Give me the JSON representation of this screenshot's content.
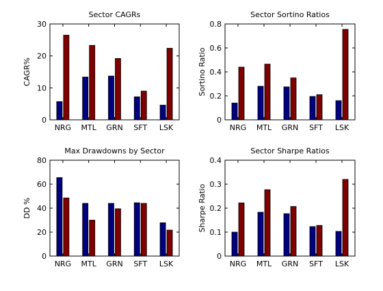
{
  "figure": {
    "background": "#ffffff"
  },
  "chart_data": [
    {
      "type": "bar",
      "title": "Sector CAGRs",
      "xlabel": "",
      "ylabel": "CAGR%",
      "categories": [
        "NRG",
        "MTL",
        "GRN",
        "SFT",
        "LSK"
      ],
      "ylim": [
        0,
        30
      ],
      "yticks": [
        "0",
        "10",
        "20",
        "30"
      ],
      "series": [
        {
          "color": "#00007f",
          "values": [
            5.7,
            13.4,
            13.7,
            7.2,
            4.6
          ]
        },
        {
          "color": "#7f0000",
          "values": [
            26.5,
            23.3,
            19.2,
            9.0,
            22.4
          ]
        }
      ],
      "grid": false,
      "legend": "none"
    },
    {
      "type": "bar",
      "title": "Sector Sortino Ratios",
      "xlabel": "",
      "ylabel": "Sortino Ratio",
      "categories": [
        "NRG",
        "MTL",
        "GRN",
        "SFT",
        "LSK"
      ],
      "ylim": [
        0,
        0.8
      ],
      "yticks": [
        "0",
        "0.2",
        "0.4",
        "0.6",
        "0.8"
      ],
      "series": [
        {
          "color": "#00007f",
          "values": [
            0.14,
            0.28,
            0.275,
            0.195,
            0.16
          ]
        },
        {
          "color": "#7f0000",
          "values": [
            0.44,
            0.465,
            0.35,
            0.21,
            0.755
          ]
        }
      ],
      "grid": false,
      "legend": "none"
    },
    {
      "type": "bar",
      "title": "Max Drawdowns by Sector",
      "xlabel": "",
      "ylabel": "DD %",
      "categories": [
        "NRG",
        "MTL",
        "GRN",
        "SFT",
        "LSK"
      ],
      "ylim": [
        0,
        80
      ],
      "yticks": [
        "0",
        "20",
        "40",
        "60",
        "80"
      ],
      "series": [
        {
          "color": "#00007f",
          "values": [
            65.5,
            44.0,
            44.0,
            44.5,
            27.8
          ]
        },
        {
          "color": "#7f0000",
          "values": [
            48.5,
            30.0,
            39.5,
            44.0,
            21.7
          ]
        }
      ],
      "grid": false,
      "legend": "none"
    },
    {
      "type": "bar",
      "title": "Sector Sharpe Ratios",
      "xlabel": "",
      "ylabel": "Sharpe Ratio",
      "categories": [
        "NRG",
        "MTL",
        "GRN",
        "SFT",
        "LSK"
      ],
      "ylim": [
        0,
        0.4
      ],
      "yticks": [
        "0",
        "0.1",
        "0.2",
        "0.3",
        "0.4"
      ],
      "series": [
        {
          "color": "#00007f",
          "values": [
            0.1,
            0.183,
            0.177,
            0.123,
            0.103
          ]
        },
        {
          "color": "#7f0000",
          "values": [
            0.222,
            0.277,
            0.207,
            0.128,
            0.32
          ]
        }
      ],
      "grid": false,
      "legend": "none"
    }
  ]
}
